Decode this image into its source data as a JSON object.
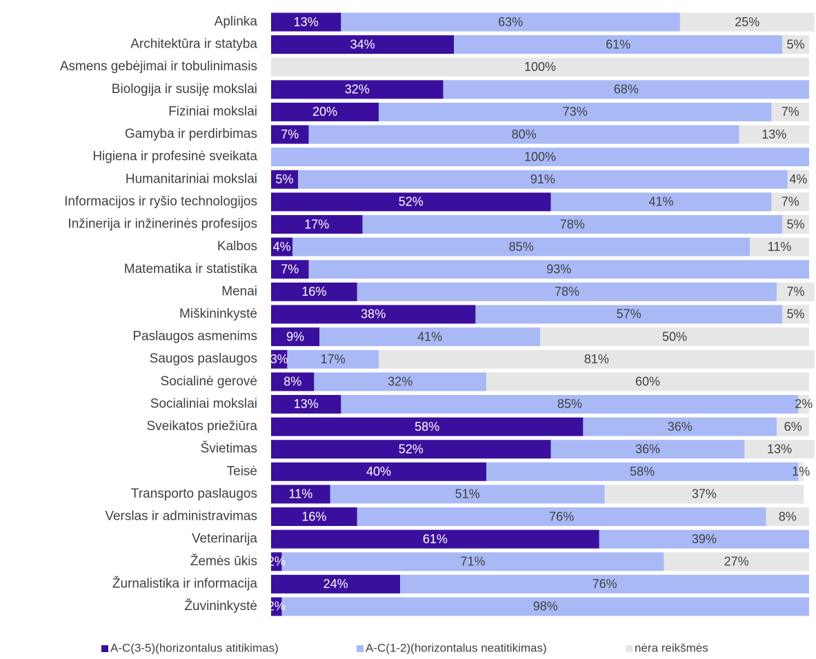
{
  "chart_data": {
    "type": "stacked-bar-horizontal",
    "categories": [
      "Aplinka",
      "Architektūra ir statyba",
      "Asmens gebėjimai ir tobulinimasis",
      "Biologija ir susiję mokslai",
      "Fiziniai mokslai",
      "Gamyba ir perdirbimas",
      "Higiena ir profesinė sveikata",
      "Humanitariniai mokslai",
      "Informacijos ir ryšio technologijos",
      "Inžinerija ir inžinerinės profesijos",
      "Kalbos",
      "Matematika ir statistika",
      "Menai",
      "Miškininkystė",
      "Paslaugos asmenims",
      "Saugos paslaugos",
      "Socialinė gerovė",
      "Socialiniai mokslai",
      "Sveikatos priežiūra",
      "Švietimas",
      "Teisė",
      "Transporto paslaugos",
      "Verslas ir administravimas",
      "Veterinarija",
      "Žemės ūkis",
      "Žurnalistika ir informacija",
      "Žuvininkystė"
    ],
    "series": [
      {
        "name": "A-C(3-5)(horizontalus atitikimas)",
        "color": "#3b0f9d",
        "values": [
          13,
          34,
          0,
          32,
          20,
          7,
          0,
          5,
          52,
          17,
          4,
          7,
          16,
          38,
          9,
          3,
          8,
          13,
          58,
          52,
          40,
          11,
          16,
          61,
          2,
          24,
          2
        ],
        "value_labels": [
          "13%",
          "34%",
          null,
          "32%",
          "20%",
          "7%",
          null,
          "5%",
          "52%",
          "17%",
          "4%",
          "7%",
          "16%",
          "38%",
          "9%",
          "3%",
          "8%",
          "13%",
          "58%",
          "52%",
          "40%",
          "11%",
          "16%",
          "61%",
          "2%",
          "24%",
          "2%"
        ]
      },
      {
        "name": "A-C(1-2)(horizontalus neatitikimas)",
        "color": "#a9b9f6",
        "values": [
          63,
          61,
          0,
          68,
          73,
          80,
          100,
          91,
          41,
          78,
          85,
          93,
          78,
          57,
          41,
          17,
          32,
          85,
          36,
          36,
          58,
          51,
          76,
          39,
          71,
          76,
          98
        ],
        "value_labels": [
          "63%",
          "61%",
          null,
          "68%",
          "73%",
          "80%",
          "100%",
          "91%",
          "41%",
          "78%",
          "85%",
          "93%",
          "78%",
          "57%",
          "41%",
          "17%",
          "32%",
          "85%",
          "36%",
          "36%",
          "58%",
          "51%",
          "76%",
          "39%",
          "71%",
          "76%",
          "98%"
        ]
      },
      {
        "name": "nėra reikšmės",
        "color": "#e6e6e6",
        "values": [
          25,
          5,
          100,
          0,
          7,
          13,
          0,
          4,
          7,
          5,
          11,
          0,
          7,
          5,
          50,
          81,
          60,
          2,
          6,
          13,
          1,
          37,
          8,
          0,
          27,
          0,
          0
        ],
        "value_labels": [
          "25%",
          "5%",
          "100%",
          null,
          "7%",
          "13%",
          null,
          "4%",
          "7%",
          "5%",
          "11%",
          null,
          "7%",
          "5%",
          "50%",
          "81%",
          "60%",
          "2%",
          "6%",
          "13%",
          "1%",
          "37%",
          "8%",
          null,
          "27%",
          null,
          null
        ]
      }
    ],
    "xlim": [
      0,
      100
    ]
  }
}
